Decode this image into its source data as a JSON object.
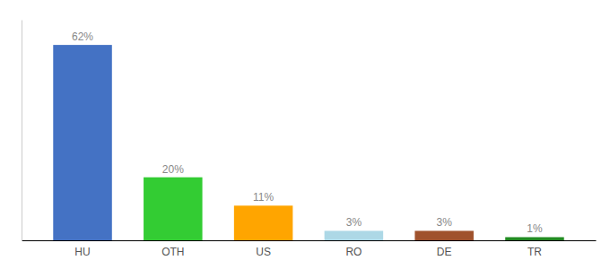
{
  "chart_data": {
    "type": "bar",
    "categories": [
      "HU",
      "OTH",
      "US",
      "RO",
      "DE",
      "TR"
    ],
    "values": [
      62,
      20,
      11,
      3,
      3,
      1
    ],
    "value_labels": [
      "62%",
      "20%",
      "11%",
      "3%",
      "3%",
      "1%"
    ],
    "colors": [
      "#4472C4",
      "#33CC33",
      "#FFA500",
      "#ADD8E6",
      "#A0522D",
      "#228B22"
    ],
    "ylim": [
      0,
      70
    ],
    "data_labels": true,
    "tick_labels": "x",
    "grid": false
  }
}
